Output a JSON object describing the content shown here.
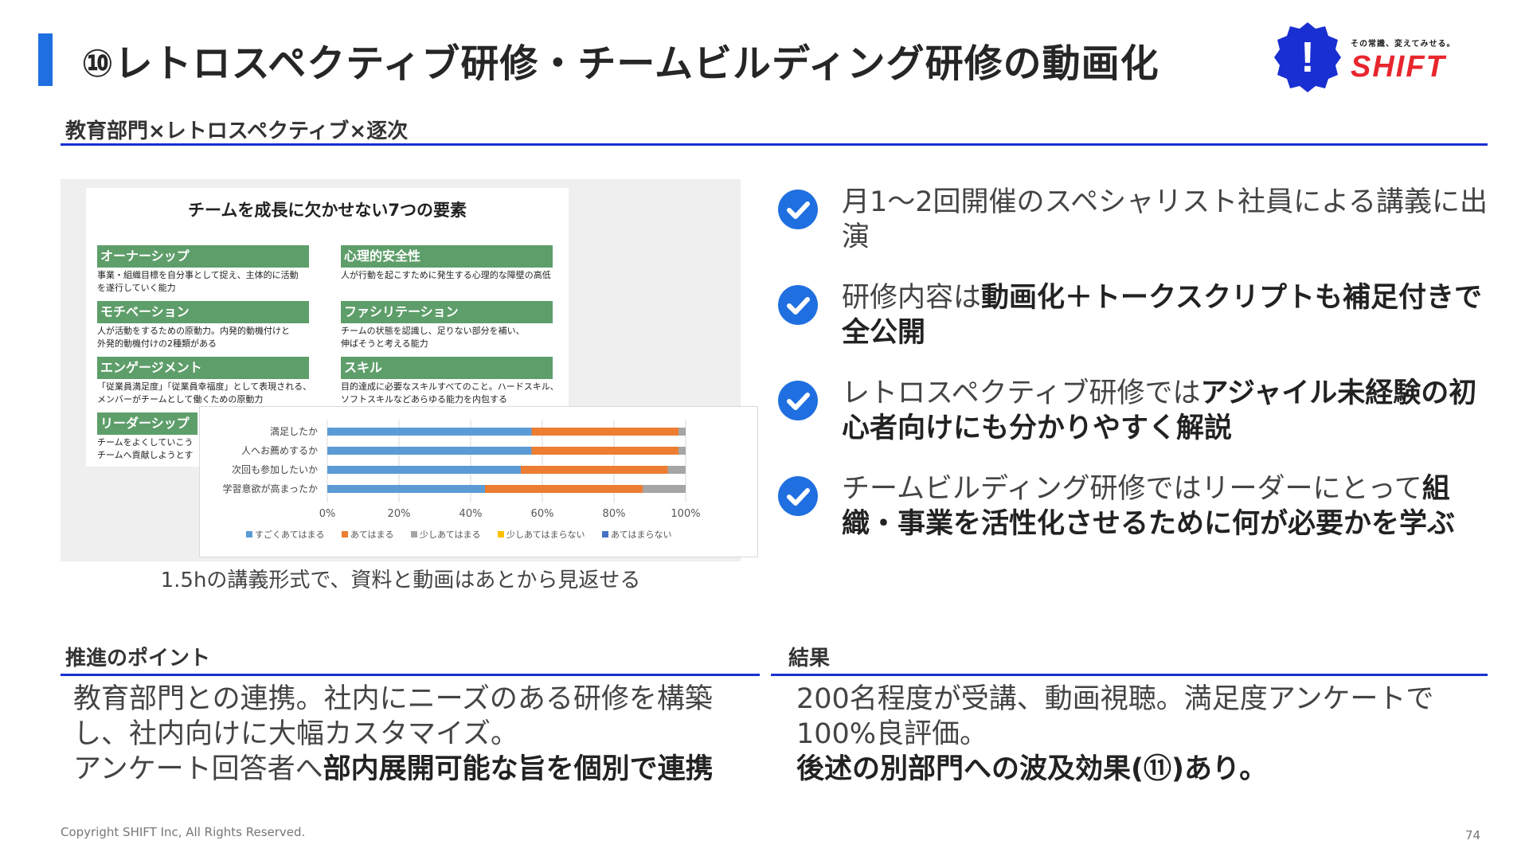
{
  "title": "⑩レトロスペクティブ研修・チームビルディング研修の動画化",
  "logo": {
    "tagline": "その常識、変えてみせる。",
    "wordmark": "SHIFT",
    "mark_glyph": "!",
    "brand_blue": "#1a2fd1",
    "brand_red": "#e8262d"
  },
  "section_label": "教育部門×レトロスペクティブ×逐次",
  "figure": {
    "elements_title": "チームを成長に欠かせない7つの要素",
    "elements": [
      {
        "name": "オーナーシップ",
        "desc": [
          "事業・組織目標を自分事として捉え、主体的に活動",
          "を遂行していく能力"
        ]
      },
      {
        "name": "心理的安全性",
        "desc": [
          "人が行動を起こすために発生する心理的な障壁の高低"
        ]
      },
      {
        "name": "モチベーション",
        "desc": [
          "人が活動をするための原動力。内発的動機付けと",
          "外発的動機付けの2種類がある"
        ]
      },
      {
        "name": "ファシリテーション",
        "desc": [
          "チームの状態を認識し、足りない部分を補い、",
          "伸ばそうと考える能力"
        ]
      },
      {
        "name": "エンゲージメント",
        "desc": [
          "「従業員満足度」「従業員幸福度」として表現される、",
          "メンバーがチームとして働くための原動力"
        ]
      },
      {
        "name": "スキル",
        "desc": [
          "目的達成に必要なスキルすべてのこと。ハードスキル、",
          "ソフトスキルなどあらゆる能力を内包する"
        ]
      },
      {
        "name": "リーダーシップ",
        "desc": [
          "チームをよくしていこう",
          "チームへ貢献しようとす"
        ]
      }
    ],
    "caption": "1.5hの講義形式で、資料と動画はあとから見返せる"
  },
  "chart_data": {
    "type": "bar",
    "orientation": "horizontal",
    "stacked": true,
    "categories": [
      "満足したか",
      "人へお薦めするか",
      "次回も参加したいか",
      "学習意欲が高まったか"
    ],
    "series": [
      {
        "name": "すごくあてはまる",
        "values": [
          57,
          57,
          54,
          44
        ],
        "color": "#5b9bd5"
      },
      {
        "name": "あてはまる",
        "values": [
          41,
          41,
          41,
          44
        ],
        "color": "#ed7d31"
      },
      {
        "name": "少しあてはまる",
        "values": [
          2,
          2,
          5,
          12
        ],
        "color": "#a5a5a5"
      },
      {
        "name": "少しあてはまらない",
        "values": [
          0,
          0,
          0,
          0
        ],
        "color": "#ffc000"
      },
      {
        "name": "あてはまらない",
        "values": [
          0,
          0,
          0,
          0
        ],
        "color": "#4472c4"
      }
    ],
    "xlim": [
      0,
      100
    ],
    "xticks": [
      "0%",
      "20%",
      "40%",
      "60%",
      "80%",
      "100%"
    ],
    "grid": true,
    "legend": "bottom"
  },
  "bullets": [
    {
      "parts": [
        {
          "t": "月1〜2回開催のスペシャリスト社員による講義に出演",
          "b": false
        }
      ]
    },
    {
      "parts": [
        {
          "t": "研修内容は",
          "b": false
        },
        {
          "t": "動画化＋トークスクリプトも補足付きで全公開",
          "b": true
        }
      ]
    },
    {
      "parts": [
        {
          "t": "レトロスペクティブ研修では",
          "b": false
        },
        {
          "t": "アジャイル未経験の初心者向けにも分かりやすく解説",
          "b": true
        }
      ]
    },
    {
      "parts": [
        {
          "t": "チームビルディング研修ではリーダーにとって",
          "b": false
        },
        {
          "t": "組織・事業を活性化させるために何が必要かを学ぶ",
          "b": true
        }
      ]
    }
  ],
  "points": {
    "label": "推進のポイント",
    "lines": [
      {
        "parts": [
          {
            "t": "教育部門との連携。社内にニーズのある研修を構築",
            "b": false
          }
        ]
      },
      {
        "parts": [
          {
            "t": "し、社内向けに大幅カスタマイズ。",
            "b": false
          }
        ]
      },
      {
        "parts": [
          {
            "t": "アンケート回答者へ",
            "b": false
          },
          {
            "t": "部内展開可能な旨を個別で連携",
            "b": true
          }
        ]
      }
    ]
  },
  "results": {
    "label": "結果",
    "lines": [
      {
        "parts": [
          {
            "t": "200名程度が受講、動画視聴。満足度アンケートで",
            "b": false
          }
        ]
      },
      {
        "parts": [
          {
            "t": "100%良評価。",
            "b": false
          }
        ]
      },
      {
        "parts": [
          {
            "t": "後述の別部門への波及効果(⑪)あり。",
            "b": true
          }
        ]
      }
    ]
  },
  "footer": {
    "copyright": "Copyright SHIFT Inc, All Rights Reserved.",
    "page": "74"
  }
}
